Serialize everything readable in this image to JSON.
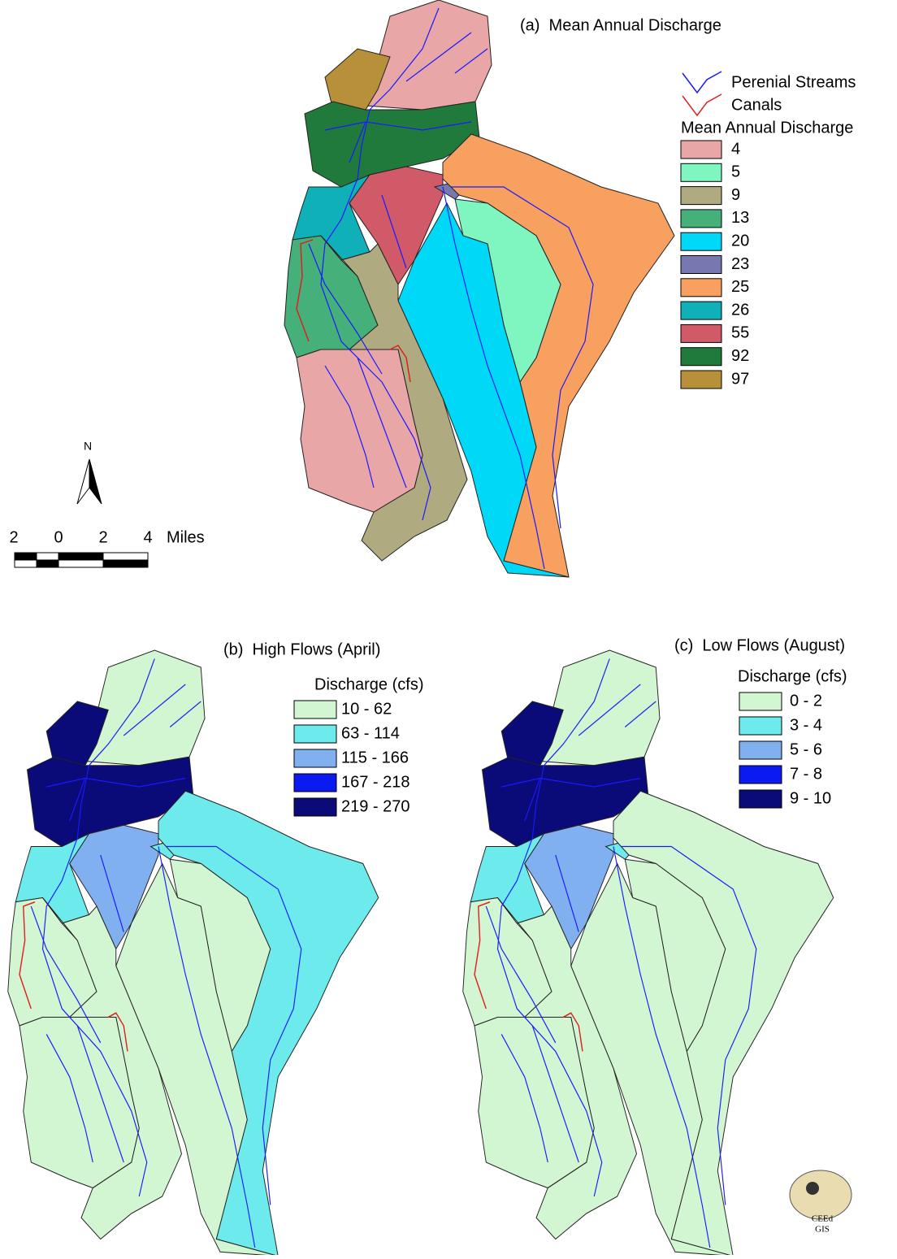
{
  "panels": [
    {
      "title": "(a)  Mean Annual Discharge",
      "legend": {
        "lines": [
          {
            "label": "Perenial Streams",
            "color": "#1a1aff"
          },
          {
            "label": "Canals",
            "color": "#e02020"
          }
        ],
        "title": "Mean Annual Discharge",
        "items": [
          {
            "label": 4,
            "color": "#e8a6a6"
          },
          {
            "label": 5,
            "color": "#7ff5c0"
          },
          {
            "label": 9,
            "color": "#b0aa80"
          },
          {
            "label": 13,
            "color": "#45b07a"
          },
          {
            "label": 20,
            "color": "#00d8f8"
          },
          {
            "label": 23,
            "color": "#7878b0"
          },
          {
            "label": 25,
            "color": "#f8a060"
          },
          {
            "label": 26,
            "color": "#10b0b8"
          },
          {
            "label": 55,
            "color": "#d05a68"
          },
          {
            "label": 92,
            "color": "#207a3c"
          },
          {
            "label": 97,
            "color": "#b8903a"
          }
        ]
      }
    },
    {
      "title": "(b)  High Flows (April)",
      "legend": {
        "title": "Discharge (cfs)",
        "items": [
          {
            "label": "10 - 62",
            "color": "#d2f5d2"
          },
          {
            "label": "63 - 114",
            "color": "#6ceaec"
          },
          {
            "label": "115 - 166",
            "color": "#80b0f0"
          },
          {
            "label": "167 - 218",
            "color": "#0a1af0"
          },
          {
            "label": "219 - 270",
            "color": "#0a0a78"
          }
        ]
      }
    },
    {
      "title": "(c)  Low Flows (August)",
      "legend": {
        "title": "Discharge (cfs)",
        "items": [
          {
            "label": "0 - 2",
            "color": "#d2f5d2"
          },
          {
            "label": "3 - 4",
            "color": "#6ceaec"
          },
          {
            "label": "5 - 6",
            "color": "#80b0f0"
          },
          {
            "label": "7 - 8",
            "color": "#0a1af0"
          },
          {
            "label": "9 - 10",
            "color": "#0a0a78"
          }
        ]
      }
    }
  ],
  "scale_bar": {
    "labels": [
      2,
      0,
      2,
      4
    ],
    "unit": "Miles"
  },
  "north_arrow": "N",
  "logo": [
    "CEEd",
    "GIS"
  ]
}
